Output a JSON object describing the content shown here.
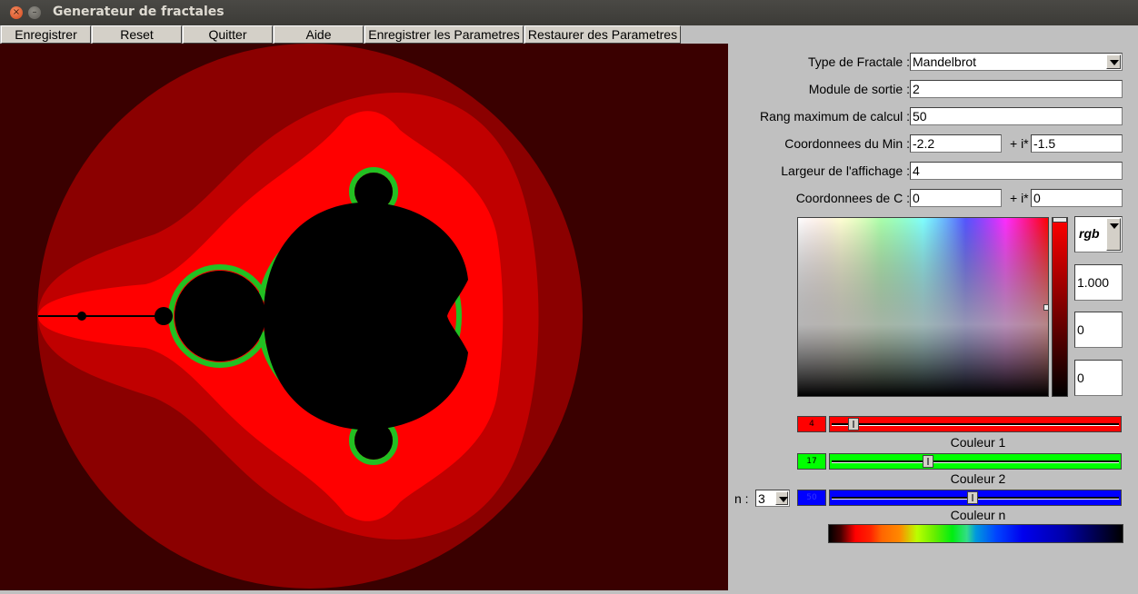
{
  "window": {
    "title": "Generateur de fractales"
  },
  "menu": {
    "save": "Enregistrer",
    "reset": "Reset",
    "quit": "Quitter",
    "help": "Aide",
    "save_params": "Enregistrer les Parametres",
    "restore_params": "Restaurer des Parametres"
  },
  "params": {
    "fractal_type_label": "Type de Fractale :",
    "fractal_type_value": "Mandelbrot",
    "escape_label": "Module de sortie :",
    "escape_value": "2",
    "max_iter_label": "Rang maximum de calcul :",
    "max_iter_value": "50",
    "min_label": "Coordonnees du Min :",
    "min_re": "-2.2",
    "plus_i": "+ i*",
    "min_im": "-1.5",
    "width_label": "Largeur de l'affichage :",
    "width_value": "4",
    "c_label": "Coordonnees de C :",
    "c_re": "0",
    "c_im": "0"
  },
  "color_picker": {
    "mode": "rgb",
    "r": "1.000",
    "g": "0",
    "b": "0",
    "selected_hue": "#ff0000"
  },
  "sliders": [
    {
      "value": "4",
      "caption": "Couleur 1",
      "color": "#ff0000",
      "fraction": 0.08
    },
    {
      "value": "17",
      "caption": "Couleur 2",
      "color": "#00ff00",
      "fraction": 0.34
    },
    {
      "value": "50",
      "caption": "Couleur n",
      "color": "#0000ff",
      "fraction": 0.5
    }
  ],
  "n_label": "n :",
  "n_value": "3",
  "fractal_colors": {
    "background": "#3a0000",
    "ring1": "#8b0000",
    "ring2": "#c00000",
    "ring3": "#ff0000",
    "set": "#000000"
  }
}
